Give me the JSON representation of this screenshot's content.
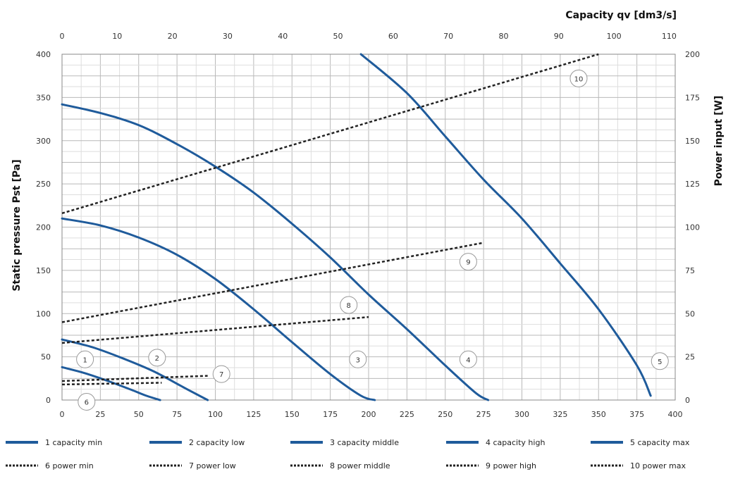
{
  "chart_data": {
    "type": "line",
    "title": "",
    "xlabel_top": "Capacity qv [dm3/s]",
    "ylabel_left": "Static pressure Pst [Pa]",
    "ylabel_right": "Power input [W]",
    "x_bottom": {
      "min": 0,
      "max": 400,
      "ticks": [
        0,
        25,
        50,
        75,
        100,
        125,
        150,
        175,
        200,
        225,
        250,
        275,
        300,
        325,
        350,
        375,
        400
      ]
    },
    "x_top": {
      "min": 0,
      "max": 111.1,
      "ticks": [
        0,
        10,
        20,
        30,
        40,
        50,
        60,
        70,
        80,
        90,
        100,
        110
      ]
    },
    "y_left": {
      "min": 0,
      "max": 400,
      "ticks": [
        0,
        50,
        100,
        150,
        200,
        250,
        300,
        350,
        400
      ]
    },
    "y_right": {
      "min": 0,
      "max": 200,
      "ticks": [
        0,
        25,
        50,
        75,
        100,
        125,
        150,
        175,
        200
      ]
    },
    "grid": true,
    "series": [
      {
        "id": "1",
        "name": "1 capacity min",
        "axis": "left",
        "style": "solid",
        "color": "#1f5b9b",
        "x": [
          0,
          15,
          30,
          45,
          55,
          64
        ],
        "y": [
          38,
          31,
          22,
          12,
          5,
          0
        ],
        "callout": [
          15,
          47
        ]
      },
      {
        "id": "2",
        "name": "2 capacity low",
        "axis": "left",
        "style": "solid",
        "color": "#1f5b9b",
        "x": [
          0,
          20,
          40,
          60,
          80,
          95
        ],
        "y": [
          70,
          61,
          48,
          33,
          14,
          0
        ],
        "callout": [
          62,
          49
        ]
      },
      {
        "id": "3",
        "name": "3 capacity middle",
        "axis": "left",
        "style": "solid",
        "color": "#1f5b9b",
        "x": [
          0,
          25,
          50,
          75,
          100,
          125,
          150,
          175,
          195,
          204
        ],
        "y": [
          210,
          202,
          188,
          168,
          140,
          105,
          67,
          30,
          5,
          0
        ],
        "callout": [
          193,
          47
        ]
      },
      {
        "id": "4",
        "name": "4 capacity high",
        "axis": "left",
        "style": "solid",
        "color": "#1f5b9b",
        "x": [
          0,
          25,
          50,
          75,
          100,
          125,
          150,
          175,
          200,
          225,
          250,
          270,
          278
        ],
        "y": [
          342,
          332,
          318,
          296,
          270,
          240,
          204,
          165,
          122,
          82,
          40,
          8,
          0
        ],
        "callout": [
          265,
          47
        ]
      },
      {
        "id": "5",
        "name": "5 capacity max",
        "axis": "left",
        "style": "solid",
        "color": "#1f5b9b",
        "x": [
          195,
          225,
          250,
          275,
          300,
          325,
          350,
          375,
          384
        ],
        "y": [
          400,
          355,
          305,
          255,
          210,
          158,
          105,
          40,
          5
        ],
        "callout": [
          390,
          45
        ]
      },
      {
        "id": "6",
        "name": "6 power min",
        "axis": "right",
        "style": "dashed",
        "color": "#222222",
        "x": [
          0,
          65
        ],
        "y": [
          9,
          10
        ],
        "callout": [
          16,
          -2
        ]
      },
      {
        "id": "7",
        "name": "7 power low",
        "axis": "right",
        "style": "dashed",
        "color": "#222222",
        "x": [
          0,
          95
        ],
        "y": [
          11,
          14
        ],
        "callout": [
          104,
          30
        ]
      },
      {
        "id": "8",
        "name": "8 power middle",
        "axis": "right",
        "style": "dashed",
        "color": "#222222",
        "x": [
          0,
          200
        ],
        "y": [
          33,
          48
        ],
        "callout": [
          187,
          110
        ]
      },
      {
        "id": "9",
        "name": "9 power high",
        "axis": "right",
        "style": "dashed",
        "color": "#222222",
        "x": [
          0,
          275
        ],
        "y": [
          45,
          91
        ],
        "callout": [
          265,
          160
        ]
      },
      {
        "id": "10",
        "name": "10 power max",
        "axis": "right",
        "style": "dashed",
        "color": "#222222",
        "x": [
          0,
          350
        ],
        "y": [
          108,
          200
        ],
        "callout": [
          337,
          372
        ]
      }
    ],
    "legend": {
      "placement": "bottom"
    }
  }
}
